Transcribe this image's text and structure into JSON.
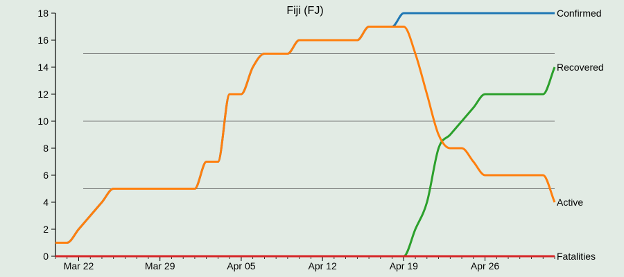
{
  "chart_data": {
    "type": "line",
    "title": "Fiji (FJ)",
    "xlabel": "",
    "ylabel": "",
    "ylim": [
      0,
      18
    ],
    "y_ticks": [
      0,
      2,
      4,
      6,
      8,
      10,
      12,
      14,
      16,
      18
    ],
    "gridlines_y": [
      5,
      10,
      15
    ],
    "x_tick_labels": [
      "Mar 22",
      "Mar 29",
      "Apr 05",
      "Apr 12",
      "Apr 19",
      "Apr 26"
    ],
    "x_tick_days": [
      2,
      9,
      16,
      23,
      30,
      37
    ],
    "x": [
      "Mar 20",
      "Mar 21",
      "Mar 22",
      "Mar 23",
      "Mar 24",
      "Mar 25",
      "Mar 26",
      "Mar 27",
      "Mar 28",
      "Mar 29",
      "Mar 30",
      "Mar 31",
      "Apr 01",
      "Apr 02",
      "Apr 03",
      "Apr 04",
      "Apr 05",
      "Apr 06",
      "Apr 07",
      "Apr 08",
      "Apr 09",
      "Apr 10",
      "Apr 11",
      "Apr 12",
      "Apr 13",
      "Apr 14",
      "Apr 15",
      "Apr 16",
      "Apr 17",
      "Apr 18",
      "Apr 19",
      "Apr 20",
      "Apr 21",
      "Apr 22",
      "Apr 23",
      "Apr 24",
      "Apr 25",
      "Apr 26",
      "Apr 27",
      "Apr 28",
      "Apr 29",
      "Apr 30",
      "May 01",
      "May 02"
    ],
    "series": [
      {
        "name": "Confirmed",
        "color": "#1f77b4",
        "values": [
          1,
          1,
          2,
          3,
          4,
          5,
          5,
          5,
          5,
          5,
          5,
          5,
          5,
          7,
          7,
          12,
          12,
          14,
          15,
          15,
          15,
          16,
          16,
          16,
          16,
          16,
          16,
          17,
          17,
          17,
          18,
          18,
          18,
          18,
          18,
          18,
          18,
          18,
          18,
          18,
          18,
          18,
          18,
          18
        ]
      },
      {
        "name": "Recovered",
        "color": "#2ca02c",
        "values": [
          0,
          0,
          0,
          0,
          0,
          0,
          0,
          0,
          0,
          0,
          0,
          0,
          0,
          0,
          0,
          0,
          0,
          0,
          0,
          0,
          0,
          0,
          0,
          0,
          0,
          0,
          0,
          0,
          0,
          0,
          0,
          2,
          4,
          8,
          9,
          10,
          11,
          12,
          12,
          12,
          12,
          12,
          12,
          14
        ]
      },
      {
        "name": "Active",
        "color": "#ff7f0e",
        "values": [
          1,
          1,
          2,
          3,
          4,
          5,
          5,
          5,
          5,
          5,
          5,
          5,
          5,
          7,
          7,
          12,
          12,
          14,
          15,
          15,
          15,
          16,
          16,
          16,
          16,
          16,
          16,
          17,
          17,
          17,
          17,
          15,
          12,
          9,
          8,
          8,
          7,
          6,
          6,
          6,
          6,
          6,
          6,
          4
        ]
      },
      {
        "name": "Fatalities",
        "color": "#d62728",
        "values": [
          0,
          0,
          0,
          0,
          0,
          0,
          0,
          0,
          0,
          0,
          0,
          0,
          0,
          0,
          0,
          0,
          0,
          0,
          0,
          0,
          0,
          0,
          0,
          0,
          0,
          0,
          0,
          0,
          0,
          0,
          0,
          0,
          0,
          0,
          0,
          0,
          0,
          0,
          0,
          0,
          0,
          0,
          0,
          0
        ]
      }
    ],
    "legend": "line-end labels (right)",
    "grid": true
  }
}
